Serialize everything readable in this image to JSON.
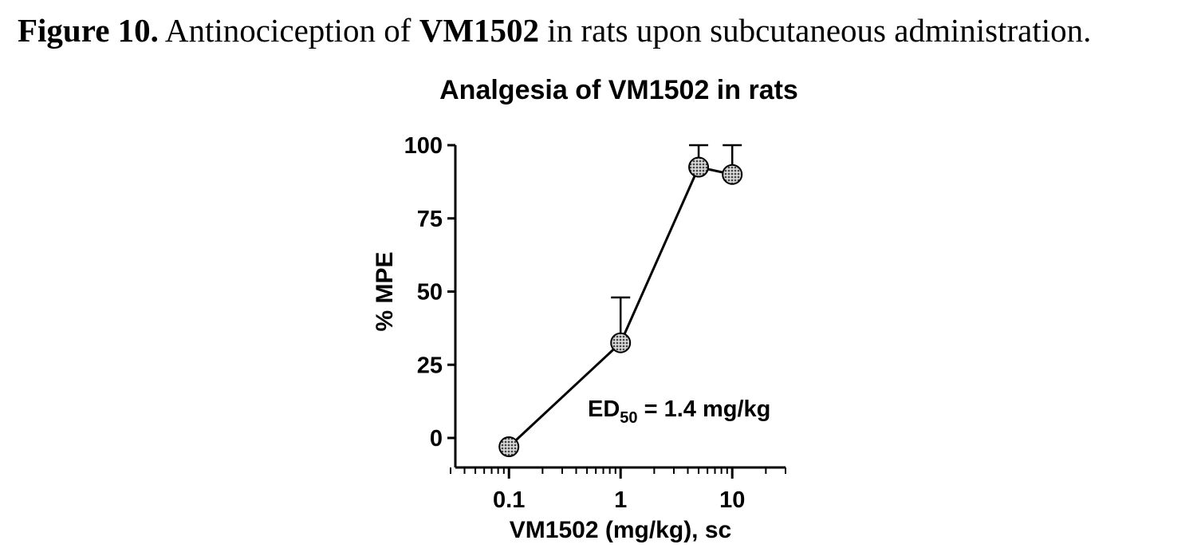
{
  "caption": {
    "label": "Figure 10.",
    "text_before": " Antinociception of ",
    "compound": "VM1502",
    "text_after": " in rats upon subcutaneous administration."
  },
  "chart_data": {
    "type": "line",
    "title": "Analgesia of VM1502 in rats",
    "xlabel": "VM1502 (mg/kg), sc",
    "ylabel": "% MPE",
    "xscale": "log",
    "xlim": [
      0.03,
      30
    ],
    "ylim": [
      -10,
      100
    ],
    "x_ticks": [
      0.1,
      1,
      10
    ],
    "x_tick_labels": [
      "0.1",
      "1",
      "10"
    ],
    "y_ticks": [
      0,
      25,
      50,
      75,
      100
    ],
    "y_tick_labels": [
      "0",
      "25",
      "50",
      "75",
      "100"
    ],
    "series": [
      {
        "x": [
          0.1,
          1,
          5,
          10
        ],
        "y": [
          -3,
          32.5,
          92.5,
          90
        ],
        "error_upper": [
          null,
          48,
          100,
          100
        ]
      }
    ],
    "annotation": {
      "main": "ED",
      "subscript": "50",
      "rest": " = 1.4 mg/kg"
    },
    "marker_color": "#8a8a8a",
    "line_color": "#000000"
  }
}
